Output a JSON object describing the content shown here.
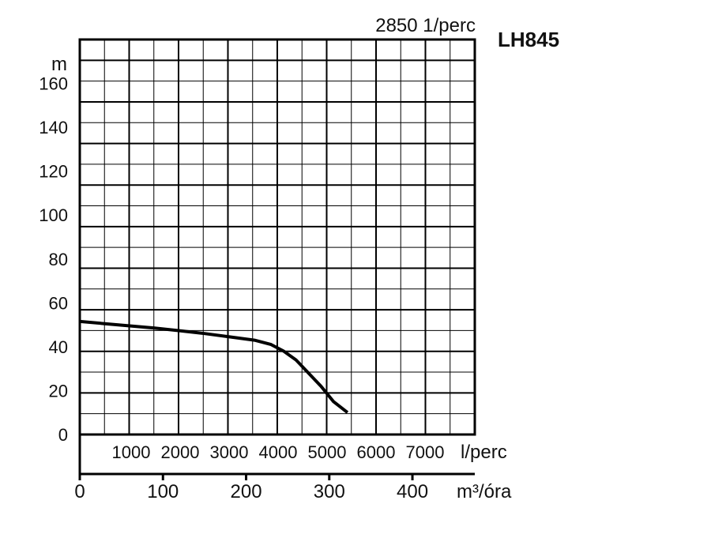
{
  "chart_data": {
    "type": "line",
    "title": "LH845",
    "subtitle": "2850 1/perc",
    "ylabel": "m",
    "ylim": [
      0,
      180
    ],
    "yticks": [
      "0",
      "20",
      "40",
      "60",
      "80",
      "100",
      "120",
      "140",
      "160"
    ],
    "x_flow_label": "l/perc",
    "x_flow_ticks": [
      "1000",
      "2000",
      "3000",
      "4000",
      "5000",
      "6000",
      "7000"
    ],
    "xlabel": "m³/óra",
    "xlim": [
      0,
      475
    ],
    "xticks": [
      "0",
      "100",
      "200",
      "300",
      "400"
    ],
    "grid": true,
    "series": [
      {
        "color": "#000000",
        "x": [
          0,
          30,
          60,
          90,
          120,
          150,
          180,
          210,
          230,
          245,
          260,
          275,
          290,
          305,
          322
        ],
        "y": [
          51.5,
          50.5,
          49.5,
          48.5,
          47.3,
          46,
          44.5,
          43,
          41,
          38,
          34,
          28,
          22,
          15,
          10
        ]
      }
    ]
  }
}
